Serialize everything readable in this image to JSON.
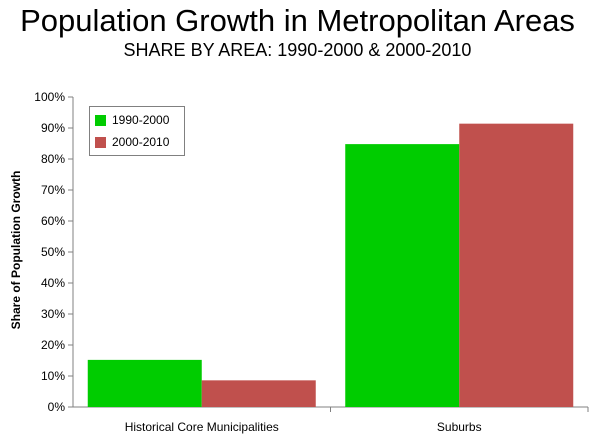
{
  "header": {
    "title": "Population Growth in Metropolitan Areas",
    "subtitle": "SHARE BY AREA: 1990-2000 & 2000-2010"
  },
  "chart_data": {
    "type": "bar",
    "categories": [
      "Historical Core Municipalities",
      "Suburbs"
    ],
    "series": [
      {
        "name": "1990-2000",
        "values": [
          15.2,
          84.8
        ],
        "color": "#00cc00"
      },
      {
        "name": "2000-2010",
        "values": [
          8.6,
          91.4
        ],
        "color": "#c0504d"
      }
    ],
    "ylabel": "Share of Population Growth",
    "xlabel": "",
    "ylim": [
      0,
      100
    ],
    "yticks": [
      "0%",
      "10%",
      "20%",
      "30%",
      "40%",
      "50%",
      "60%",
      "70%",
      "80%",
      "90%",
      "100%"
    ],
    "grid": false,
    "legend": "top-left"
  }
}
